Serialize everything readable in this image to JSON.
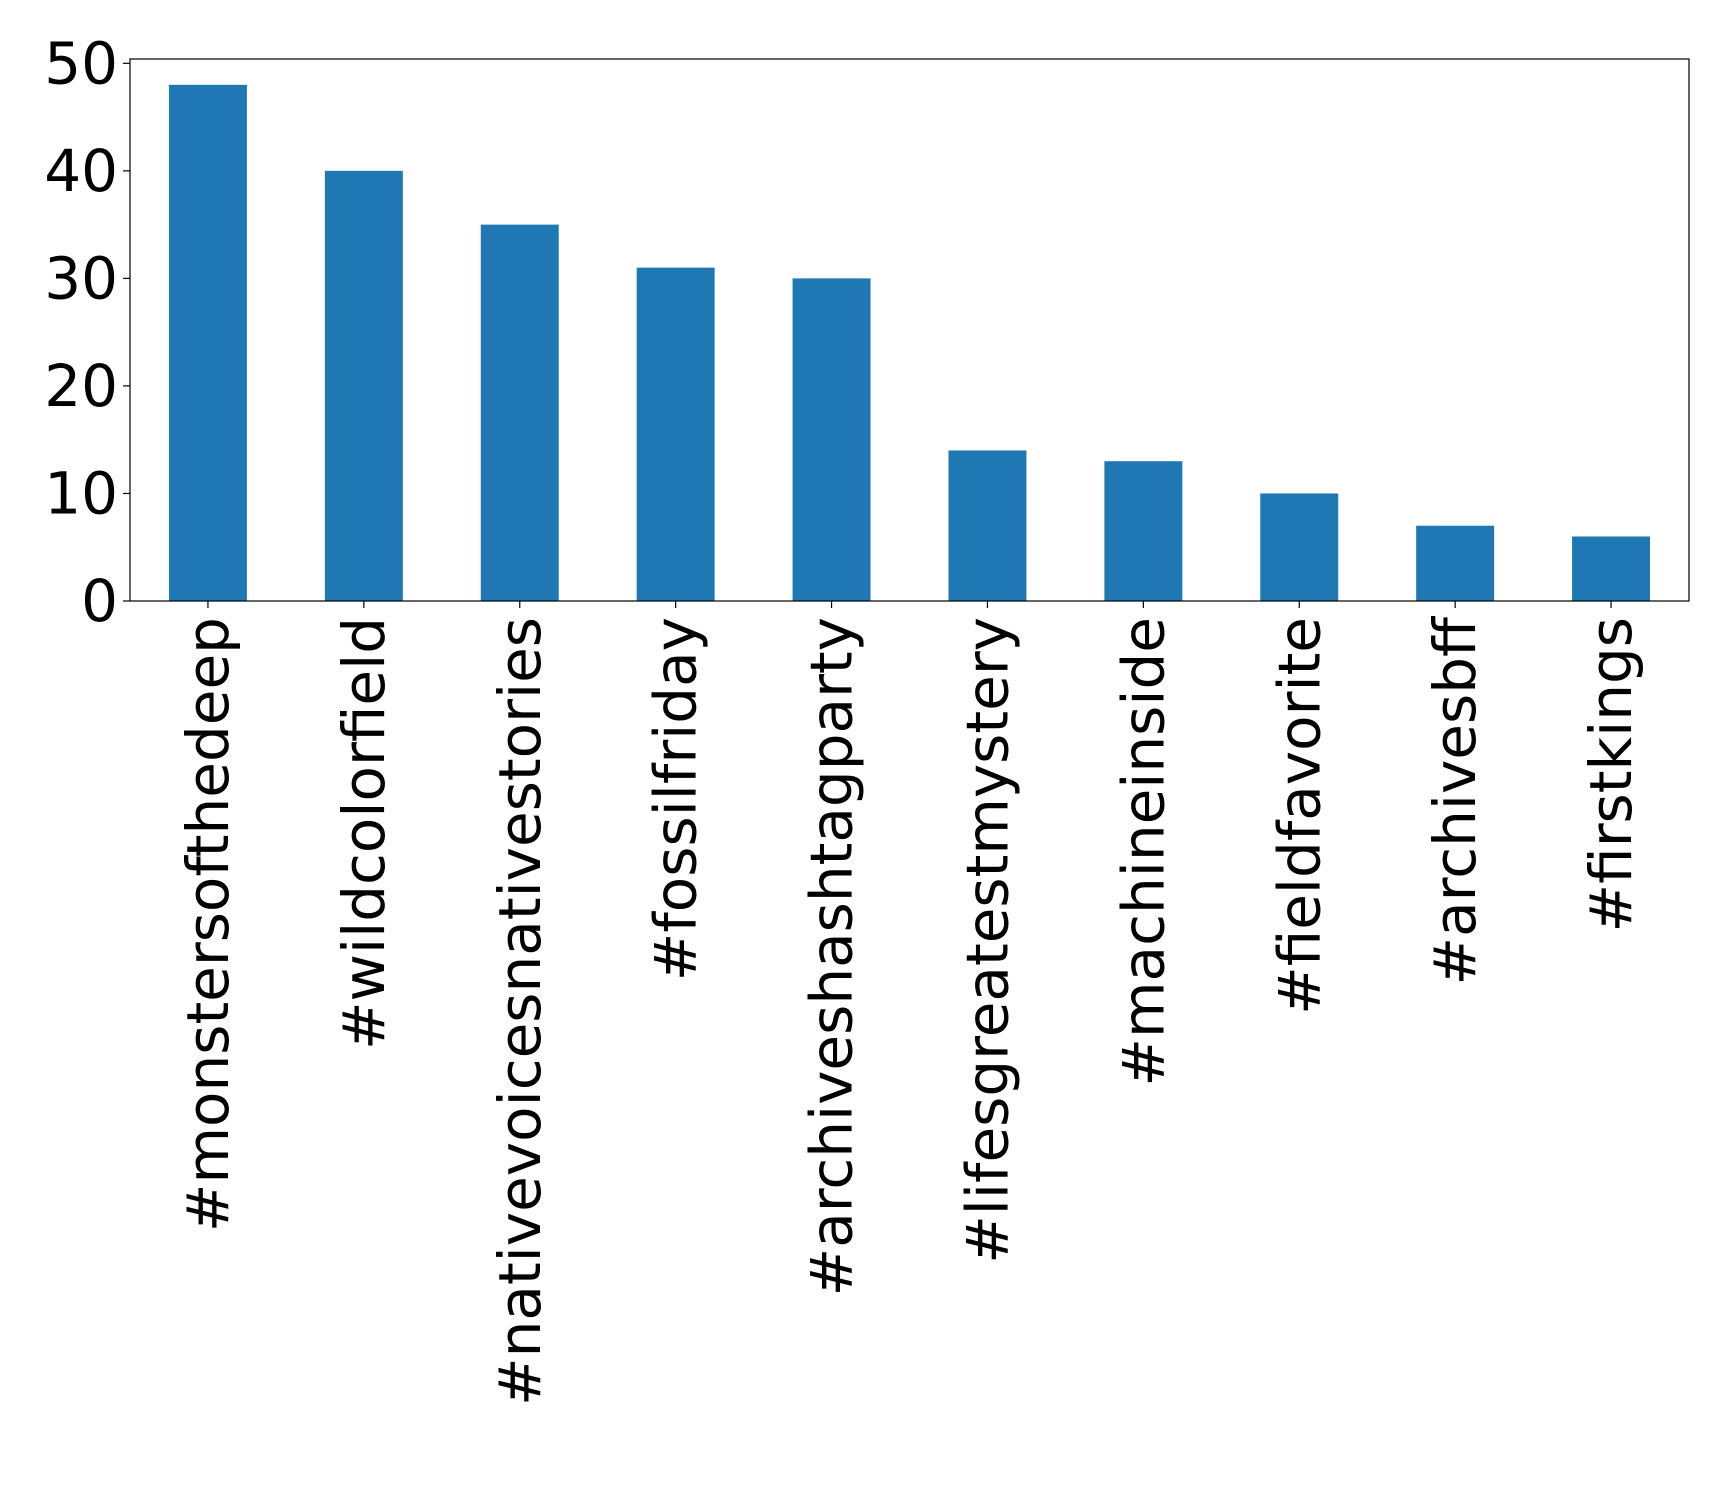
{
  "chart_data": {
    "type": "bar",
    "title": "",
    "xlabel": "",
    "ylabel": "",
    "categories": [
      "#monstersofthedeep",
      "#wildcolorfield",
      "#nativevoicesnativestories",
      "#fossilfriday",
      "#archiveshashtagparty",
      "#lifesgreatestmystery",
      "#machineinside",
      "#fieldfavorite",
      "#archivesbff",
      "#firstkings"
    ],
    "values": [
      48,
      40,
      35,
      31,
      30,
      14,
      13,
      10,
      7,
      6
    ],
    "ylim": [
      0,
      50.4
    ],
    "yticks": [
      "0",
      "10",
      "20",
      "30",
      "40",
      "50"
    ],
    "grid": false,
    "legend": "none",
    "bar_color": "#1f77b4"
  }
}
